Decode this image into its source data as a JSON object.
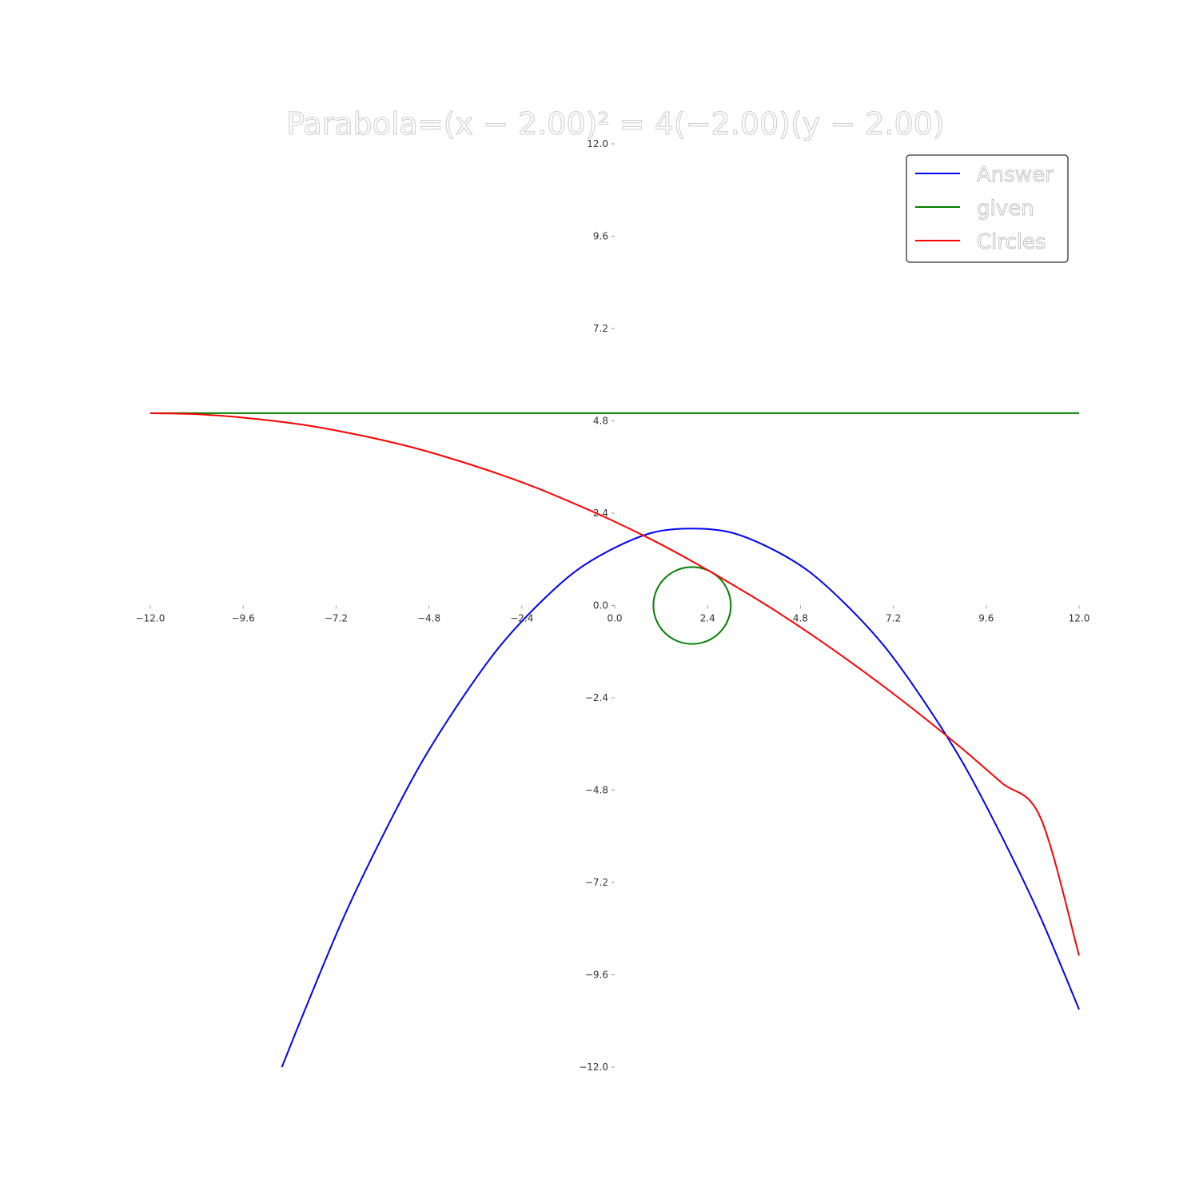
{
  "chart_data": {
    "type": "line",
    "title": "Parabola=(x − 2.00)² = 4(−2.00)(y − 2.00)",
    "xlim": [
      -12.0,
      12.0
    ],
    "ylim": [
      -12.0,
      12.0
    ],
    "xticks": [
      "−12.0",
      "−9.6",
      "−7.2",
      "−4.8",
      "−2.4",
      "0.0",
      "2.4",
      "4.8",
      "7.2",
      "9.6",
      "12.0"
    ],
    "yticks": [
      "12.0",
      "9.6",
      "7.2",
      "4.8",
      "2.4",
      "0.0",
      "−2.4",
      "−4.8",
      "−7.2",
      "−9.6",
      "−12.0"
    ],
    "xtick_values": [
      -12.0,
      -9.6,
      -7.2,
      -4.8,
      -2.4,
      0.0,
      2.4,
      4.8,
      7.2,
      9.6,
      12.0
    ],
    "ytick_values": [
      12.0,
      9.6,
      7.2,
      4.8,
      2.4,
      0.0,
      -2.4,
      -4.8,
      -7.2,
      -9.6,
      -12.0
    ],
    "grid": false,
    "spines": "centered at origin",
    "legend": {
      "position": "top-right",
      "entries": [
        {
          "label": "Answer",
          "color": "#0000ff"
        },
        {
          "label": "given",
          "color": "#008000"
        },
        {
          "label": "Circles",
          "color": "#ff0000"
        }
      ]
    },
    "series": [
      {
        "name": "Answer",
        "color": "#0000ff",
        "x": [
          -8.6,
          -8.0,
          -7.0,
          -6.0,
          -5.0,
          -4.0,
          -3.0,
          -2.0,
          -1.0,
          0.0,
          1.0,
          2.0,
          3.0,
          4.0,
          5.0,
          6.0,
          7.0,
          8.0,
          9.0,
          10.0,
          11.0,
          12.0
        ],
        "y": [
          -12.0,
          -10.5,
          -8.1,
          -6.0,
          -4.1,
          -2.5,
          -1.1,
          0.0,
          0.9,
          1.5,
          1.9,
          2.0,
          1.9,
          1.5,
          0.9,
          0.0,
          -1.1,
          -2.5,
          -4.1,
          -6.0,
          -8.1,
          -10.5
        ]
      },
      {
        "name": "given",
        "color": "#008000",
        "segments": [
          {
            "kind": "line",
            "x": [
              -12.0,
              12.0
            ],
            "y": [
              5.0,
              5.0
            ]
          },
          {
            "kind": "circle",
            "center": [
              2.0,
              0.0
            ],
            "radius": 1.0
          }
        ]
      },
      {
        "name": "Circles",
        "color": "#ff0000",
        "x": [
          -12.0,
          -11.0,
          -10.0,
          -9.0,
          -8.0,
          -7.0,
          -6.0,
          -5.0,
          -4.0,
          -3.0,
          -2.0,
          -1.0,
          0.0,
          1.0,
          2.0,
          3.0,
          4.0,
          5.0,
          6.0,
          7.0,
          8.0,
          9.0,
          10.0,
          11.0,
          12.0
        ],
        "y": [
          5.0,
          4.98,
          4.92,
          4.82,
          4.69,
          4.51,
          4.3,
          4.05,
          3.75,
          3.42,
          3.05,
          2.63,
          2.18,
          1.69,
          1.15,
          0.57,
          -0.04,
          -0.7,
          -1.4,
          -2.14,
          -2.92,
          -3.74,
          -4.61,
          -5.51,
          -9.1
        ]
      }
    ]
  }
}
